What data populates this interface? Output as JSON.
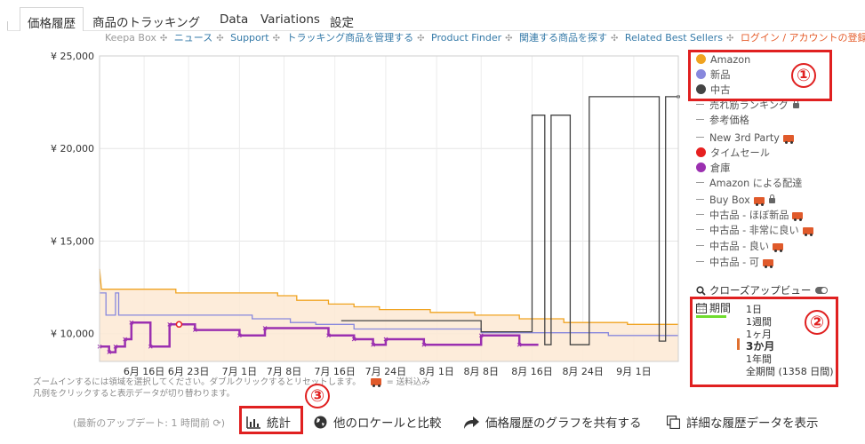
{
  "tabs": [
    "価格履歴",
    "商品のトラッキング",
    "Data",
    "Variations",
    "設定"
  ],
  "subnav": {
    "static": "Keepa Box",
    "links": [
      "ニュース",
      "Support",
      "トラッキング商品を管理する",
      "Product Finder",
      "関連する商品を探す",
      "Related Best Sellers"
    ],
    "login": "ログイン / アカウントの登録"
  },
  "legend": {
    "items": [
      {
        "label": "Amazon",
        "marker": "dot",
        "color": "#f0a320"
      },
      {
        "label": "新品",
        "marker": "dot",
        "color": "#8888dd"
      },
      {
        "label": "中古",
        "marker": "dot",
        "color": "#444444"
      },
      {
        "label": "売れ筋ランキング",
        "marker": "dash",
        "extra": "lock"
      },
      {
        "label": "参考価格",
        "marker": "dash"
      },
      {
        "label": "New 3rd Party",
        "marker": "dash",
        "extra": "truck"
      },
      {
        "label": "タイムセール",
        "marker": "dot",
        "color": "#e62020"
      },
      {
        "label": "倉庫",
        "marker": "dot",
        "color": "#9b30b0"
      },
      {
        "label": "Amazon による配達",
        "marker": "dash"
      },
      {
        "label": "Buy Box",
        "marker": "dash",
        "extra": "truck-lock"
      },
      {
        "label": "中古品 - ほぼ新品",
        "marker": "dash",
        "extra": "truck"
      },
      {
        "label": "中古品 - 非常に良い",
        "marker": "dash",
        "extra": "truck"
      },
      {
        "label": "中古品 - 良い",
        "marker": "dash",
        "extra": "truck"
      },
      {
        "label": "中古品 - 可",
        "marker": "dash",
        "extra": "truck"
      }
    ]
  },
  "annotations": [
    "①",
    "②",
    "③"
  ],
  "zoom": {
    "label": "クローズアップビュー"
  },
  "period": {
    "label": "期間",
    "options": [
      "1日",
      "1週間",
      "1ヶ月",
      "3か月",
      "1年間",
      "全期間 (1358 日間)"
    ],
    "selected": "3か月"
  },
  "hint": {
    "line1": "ズームインするには領域を選択してください。ダブルクリックするとリセットします。",
    "shipping": "= 送料込み",
    "line2": "凡例をクリックすると表示データが切り替わります。"
  },
  "footer": {
    "updated": "(最新のアップデート: 1 時間前",
    "stats": "統計",
    "compare": "他のロケールと比較",
    "share": "価格履歴のグラフを共有する",
    "details": "詳細な履歴データを表示"
  },
  "chart_data": {
    "type": "line",
    "title": "",
    "xlabel": "",
    "ylabel": "",
    "yticks": [
      "¥ 25,000",
      "¥ 20,000",
      "¥ 15,000",
      "¥ 10,000"
    ],
    "ylim": [
      8500,
      25000
    ],
    "xticks": [
      "6月 16日",
      "6月 23日",
      "7月 1日",
      "7月 8日",
      "7月 16日",
      "7月 24日",
      "8月 1日",
      "8月 8日",
      "8月 16日",
      "8月 24日",
      "9月 1日"
    ],
    "xlim_days": [
      0,
      91
    ],
    "grid": true,
    "series": [
      {
        "name": "Amazon",
        "color": "#f0a320",
        "points": [
          [
            0,
            13500
          ],
          [
            0.3,
            12400
          ],
          [
            12,
            12400
          ],
          [
            12,
            12200
          ],
          [
            28,
            12200
          ],
          [
            28,
            12050
          ],
          [
            31,
            12050
          ],
          [
            31,
            11800
          ],
          [
            36,
            11800
          ],
          [
            36,
            11600
          ],
          [
            40,
            11600
          ],
          [
            40,
            11450
          ],
          [
            44,
            11450
          ],
          [
            44,
            11300
          ],
          [
            52,
            11300
          ],
          [
            52,
            11150
          ],
          [
            59,
            11150
          ],
          [
            59,
            11000
          ],
          [
            66,
            11000
          ],
          [
            66,
            10800
          ],
          [
            73,
            10800
          ],
          [
            73,
            10600
          ],
          [
            83,
            10600
          ],
          [
            83,
            10500
          ],
          [
            91,
            10500
          ]
        ]
      },
      {
        "name": "新品",
        "color": "#8888dd",
        "points": [
          [
            0,
            12200
          ],
          [
            1,
            12200
          ],
          [
            1,
            11000
          ],
          [
            2.5,
            11000
          ],
          [
            2.5,
            12200
          ],
          [
            3,
            12200
          ],
          [
            3,
            11000
          ],
          [
            24,
            11000
          ],
          [
            24,
            10800
          ],
          [
            30,
            10800
          ],
          [
            30,
            10600
          ],
          [
            34,
            10600
          ],
          [
            34,
            10500
          ],
          [
            40,
            10500
          ],
          [
            40,
            10250
          ],
          [
            60,
            10250
          ],
          [
            60,
            10050
          ],
          [
            80,
            10050
          ],
          [
            80,
            9900
          ],
          [
            91,
            9900
          ]
        ]
      },
      {
        "name": "中古",
        "color": "#444444",
        "points": [
          [
            38,
            10700
          ],
          [
            60,
            10700
          ],
          [
            60,
            10100
          ],
          [
            68,
            10100
          ],
          [
            68,
            21800
          ],
          [
            70,
            21800
          ],
          [
            70,
            9400
          ],
          [
            71,
            9400
          ],
          [
            71,
            21800
          ],
          [
            74,
            21800
          ],
          [
            74,
            9400
          ],
          [
            77,
            9400
          ],
          [
            77,
            22800
          ],
          [
            88,
            22800
          ],
          [
            88,
            9600
          ],
          [
            89,
            9600
          ],
          [
            89,
            22800
          ],
          [
            91,
            22800
          ]
        ]
      },
      {
        "name": "タイムセール",
        "color": "#e62020",
        "points": [
          [
            12.5,
            10500
          ],
          [
            14,
            10500
          ]
        ]
      },
      {
        "name": "倉庫",
        "color": "#9b30b0",
        "points": [
          [
            0,
            9300
          ],
          [
            1.5,
            9300
          ],
          [
            1.5,
            9000
          ],
          [
            2.5,
            9000
          ],
          [
            2.5,
            9300
          ],
          [
            4,
            9300
          ],
          [
            4,
            9700
          ],
          [
            5,
            9700
          ],
          [
            5,
            10600
          ],
          [
            8,
            10600
          ],
          [
            8,
            9300
          ],
          [
            11,
            9300
          ],
          [
            11,
            10500
          ],
          [
            15,
            10500
          ],
          [
            15,
            10200
          ],
          [
            22,
            10200
          ],
          [
            22,
            9900
          ],
          [
            26,
            9900
          ],
          [
            26,
            10300
          ],
          [
            36,
            10300
          ],
          [
            36,
            9900
          ],
          [
            40,
            9900
          ],
          [
            40,
            9700
          ],
          [
            43,
            9700
          ],
          [
            43,
            9400
          ],
          [
            45,
            9400
          ],
          [
            45,
            9700
          ],
          [
            51,
            9700
          ],
          [
            51,
            9400
          ],
          [
            60,
            9400
          ],
          [
            60,
            9900
          ],
          [
            66,
            9900
          ],
          [
            66,
            9400
          ],
          [
            69,
            9400
          ]
        ]
      }
    ]
  }
}
